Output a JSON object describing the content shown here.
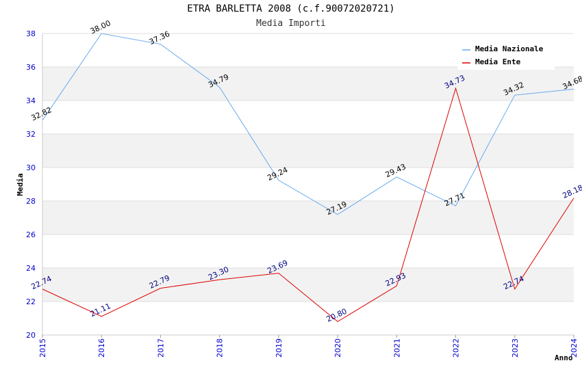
{
  "chart_data": {
    "type": "line",
    "title": "ETRA BARLETTA 2008 (c.f.90072020721)",
    "subtitle": "Media Importi",
    "xlabel": "Anno",
    "ylabel": "Media",
    "ylim": [
      20,
      38
    ],
    "x": [
      "2015",
      "2016",
      "2017",
      "2018",
      "2019",
      "2020",
      "2021",
      "2022",
      "2023",
      "2024"
    ],
    "yticks": [
      20,
      22,
      24,
      26,
      28,
      30,
      32,
      34,
      36,
      38
    ],
    "grid": true,
    "legend": "top-right",
    "series": [
      {
        "name": "Media Nazionale",
        "color": "#66aaee",
        "label_color": "#000000",
        "values": [
          32.82,
          38.0,
          37.36,
          34.79,
          29.24,
          27.19,
          29.43,
          27.71,
          34.32,
          34.68
        ],
        "labels": [
          "32.82",
          "38.00",
          "37.36",
          "34.79",
          "29.24",
          "27.19",
          "29.43",
          "27.71",
          "34.32",
          "34.68"
        ]
      },
      {
        "name": "Media Ente",
        "color": "#dd0000",
        "label_color": "#000080",
        "values": [
          22.74,
          21.11,
          22.79,
          23.3,
          23.69,
          20.8,
          22.93,
          34.73,
          22.74,
          28.18
        ],
        "labels": [
          "22.74",
          "21.11",
          "22.79",
          "23.30",
          "23.69",
          "20.80",
          "22.93",
          "34.73",
          "22.74",
          "28.18"
        ]
      }
    ]
  }
}
